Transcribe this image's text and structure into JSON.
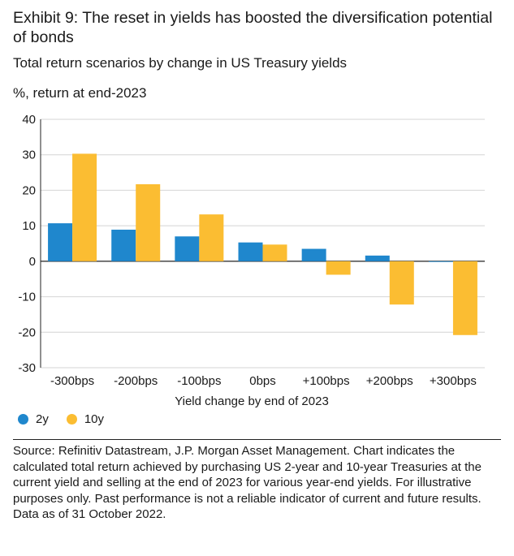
{
  "title": "Exhibit 9: The reset in yields has boosted the diversification potential of bonds",
  "subtitle": "Total return scenarios by change in US Treasury yields",
  "unit_label": "%, return at end-2023",
  "source": "Source: Refinitiv Datastream, J.P. Morgan Asset Management. Chart indicates the calculated total return achieved by purchasing US 2-year and 10-year Treasuries at the current yield and selling at the end of 2023 for various year-end yields. For illustrative purposes only. Past performance is not a reliable indicator of current and future results. Data as of 31 October 2022.",
  "chart_data": {
    "type": "bar",
    "title": "Exhibit 9: The reset in yields has boosted the diversification potential of bonds",
    "subtitle": "Total return scenarios by change in US Treasury yields",
    "xlabel": "Yield change by end of 2023",
    "ylabel": "%, return at end-2023",
    "categories": [
      "-300bps",
      "-200bps",
      "-100bps",
      "0bps",
      "+100bps",
      "+200bps",
      "+300bps"
    ],
    "series": [
      {
        "name": "2y",
        "color": "#1f87cd",
        "values": [
          10.7,
          8.9,
          7.0,
          5.3,
          3.5,
          1.6,
          -0.2
        ]
      },
      {
        "name": "10y",
        "color": "#fbbd32",
        "values": [
          30.3,
          21.7,
          13.2,
          4.7,
          -3.8,
          -12.2,
          -20.8
        ]
      }
    ],
    "ylim": [
      -30,
      40
    ],
    "yticks": [
      -30,
      -20,
      -10,
      0,
      10,
      20,
      30,
      40
    ],
    "grid": true,
    "legend_position": "bottom-left"
  }
}
